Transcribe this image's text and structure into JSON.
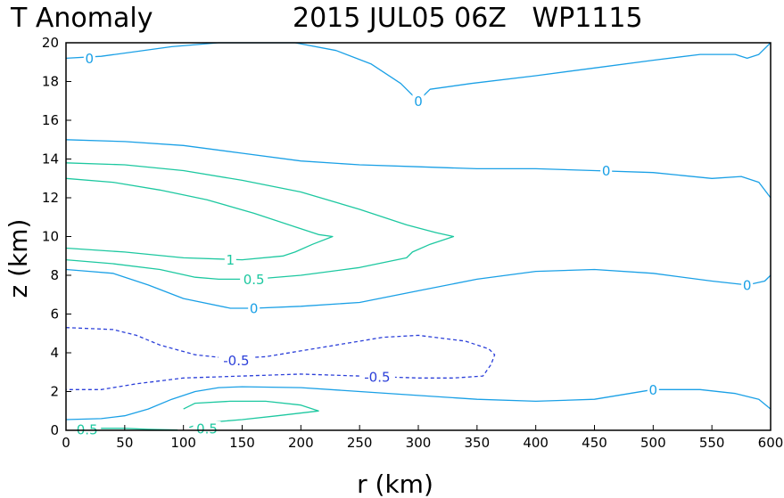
{
  "chart_data": {
    "type": "contour",
    "title_left": "T Anomaly",
    "title_right": "2015 JUL05 06Z   WP1115",
    "xlabel": "r (km)",
    "ylabel": "z (km)",
    "xlim": [
      0,
      600
    ],
    "ylim": [
      0,
      20
    ],
    "x_ticks": [
      0,
      50,
      100,
      150,
      200,
      250,
      300,
      350,
      400,
      450,
      500,
      550,
      600
    ],
    "y_ticks": [
      0,
      2,
      4,
      6,
      8,
      10,
      12,
      14,
      16,
      18,
      20
    ],
    "grid": false,
    "colors": {
      "zero": "#1aa0e6",
      "positive": "#1dc8a0",
      "negative": "#2b3fd9"
    },
    "contours": [
      {
        "level": "0",
        "kind": "zero",
        "dashed": false,
        "points": [
          [
            0,
            19.2
          ],
          [
            30,
            19.3
          ],
          [
            90,
            19.8
          ],
          [
            130,
            20.0
          ],
          [
            195,
            20.0
          ],
          [
            230,
            19.6
          ],
          [
            260,
            18.9
          ],
          [
            285,
            17.9
          ],
          [
            300,
            17.0
          ],
          [
            310,
            17.6
          ],
          [
            345,
            17.9
          ],
          [
            400,
            18.3
          ],
          [
            450,
            18.7
          ],
          [
            500,
            19.1
          ],
          [
            540,
            19.4
          ],
          [
            570,
            19.4
          ],
          [
            580,
            19.2
          ],
          [
            590,
            19.4
          ],
          [
            600,
            20.0
          ]
        ],
        "labels": [
          {
            "text": "0",
            "x": 20,
            "y": 19.2
          },
          {
            "text": "0",
            "x": 300,
            "y": 17.0
          }
        ]
      },
      {
        "level": "0",
        "kind": "zero",
        "dashed": false,
        "points": [
          [
            0,
            15.0
          ],
          [
            50,
            14.9
          ],
          [
            100,
            14.7
          ],
          [
            150,
            14.3
          ],
          [
            200,
            13.9
          ],
          [
            250,
            13.7
          ],
          [
            300,
            13.6
          ],
          [
            350,
            13.5
          ],
          [
            400,
            13.5
          ],
          [
            450,
            13.4
          ],
          [
            500,
            13.3
          ],
          [
            550,
            13.0
          ],
          [
            575,
            13.1
          ],
          [
            590,
            12.8
          ],
          [
            600,
            12.0
          ]
        ],
        "labels": [
          {
            "text": "0",
            "x": 460,
            "y": 13.4
          }
        ]
      },
      {
        "level": "0.5",
        "kind": "positive",
        "dashed": false,
        "points": [
          [
            0,
            13.8
          ],
          [
            50,
            13.7
          ],
          [
            100,
            13.4
          ],
          [
            150,
            12.9
          ],
          [
            200,
            12.3
          ],
          [
            250,
            11.4
          ],
          [
            290,
            10.6
          ],
          [
            315,
            10.2
          ],
          [
            330,
            10.0
          ],
          [
            310,
            9.6
          ],
          [
            295,
            9.2
          ],
          [
            290,
            8.9
          ],
          [
            250,
            8.4
          ],
          [
            200,
            8.0
          ],
          [
            160,
            7.8
          ],
          [
            130,
            7.8
          ],
          [
            110,
            7.9
          ],
          [
            80,
            8.3
          ],
          [
            40,
            8.6
          ],
          [
            0,
            8.8
          ]
        ],
        "labels": [
          {
            "text": "0.5",
            "x": 160,
            "y": 7.8
          }
        ]
      },
      {
        "level": "1",
        "kind": "positive",
        "dashed": false,
        "points": [
          [
            0,
            13.0
          ],
          [
            40,
            12.8
          ],
          [
            80,
            12.4
          ],
          [
            120,
            11.9
          ],
          [
            160,
            11.2
          ],
          [
            195,
            10.5
          ],
          [
            215,
            10.1
          ],
          [
            227,
            10.0
          ],
          [
            210,
            9.6
          ],
          [
            195,
            9.2
          ],
          [
            185,
            9.0
          ],
          [
            150,
            8.8
          ],
          [
            100,
            8.9
          ],
          [
            50,
            9.2
          ],
          [
            0,
            9.4
          ]
        ],
        "labels": [
          {
            "text": "1",
            "x": 140,
            "y": 8.8
          }
        ]
      },
      {
        "level": "0",
        "kind": "zero",
        "dashed": false,
        "points": [
          [
            0,
            8.3
          ],
          [
            20,
            8.2
          ],
          [
            40,
            8.1
          ],
          [
            70,
            7.5
          ],
          [
            100,
            6.8
          ],
          [
            140,
            6.3
          ],
          [
            160,
            6.3
          ],
          [
            200,
            6.4
          ],
          [
            250,
            6.6
          ],
          [
            300,
            7.2
          ],
          [
            350,
            7.8
          ],
          [
            400,
            8.2
          ],
          [
            450,
            8.3
          ],
          [
            500,
            8.1
          ],
          [
            550,
            7.7
          ],
          [
            580,
            7.5
          ],
          [
            595,
            7.7
          ],
          [
            600,
            8.0
          ]
        ],
        "labels": [
          {
            "text": "0",
            "x": 160,
            "y": 6.3
          },
          {
            "text": "0",
            "x": 580,
            "y": 7.5
          }
        ]
      },
      {
        "level": "-0.5",
        "kind": "negative",
        "dashed": true,
        "points": [
          [
            0,
            5.3
          ],
          [
            40,
            5.2
          ],
          [
            60,
            4.9
          ],
          [
            80,
            4.4
          ],
          [
            110,
            3.9
          ],
          [
            140,
            3.7
          ],
          [
            170,
            3.8
          ],
          [
            220,
            4.3
          ],
          [
            270,
            4.8
          ],
          [
            300,
            4.9
          ],
          [
            340,
            4.6
          ],
          [
            360,
            4.2
          ],
          [
            365,
            3.9
          ],
          [
            362,
            3.4
          ],
          [
            355,
            2.8
          ],
          [
            330,
            2.7
          ],
          [
            300,
            2.7
          ],
          [
            250,
            2.8
          ],
          [
            200,
            2.9
          ],
          [
            150,
            2.8
          ],
          [
            100,
            2.7
          ],
          [
            60,
            2.4
          ],
          [
            30,
            2.1
          ],
          [
            0,
            2.1
          ]
        ],
        "labels": [
          {
            "text": "-0.5",
            "x": 145,
            "y": 3.6
          },
          {
            "text": "-0.5",
            "x": 265,
            "y": 2.75
          }
        ]
      },
      {
        "level": "0",
        "kind": "zero",
        "dashed": false,
        "points": [
          [
            0,
            0.55
          ],
          [
            30,
            0.6
          ],
          [
            50,
            0.75
          ],
          [
            70,
            1.1
          ],
          [
            90,
            1.6
          ],
          [
            110,
            2.0
          ],
          [
            130,
            2.2
          ],
          [
            150,
            2.25
          ],
          [
            200,
            2.2
          ],
          [
            250,
            2.0
          ],
          [
            300,
            1.8
          ],
          [
            350,
            1.6
          ],
          [
            400,
            1.5
          ],
          [
            450,
            1.6
          ],
          [
            500,
            2.1
          ],
          [
            540,
            2.1
          ],
          [
            570,
            1.9
          ],
          [
            590,
            1.6
          ],
          [
            600,
            1.1
          ]
        ],
        "labels": [
          {
            "text": "0",
            "x": 500,
            "y": 2.1
          }
        ]
      },
      {
        "level": "0.5",
        "kind": "positive",
        "dashed": false,
        "points": [
          [
            100,
            1.1
          ],
          [
            110,
            1.4
          ],
          [
            140,
            1.5
          ],
          [
            170,
            1.5
          ],
          [
            200,
            1.3
          ],
          [
            215,
            1.0
          ],
          [
            180,
            0.75
          ],
          [
            150,
            0.55
          ],
          [
            130,
            0.45
          ],
          [
            112,
            0.3
          ],
          [
            105,
            0.15
          ]
        ],
        "labels": [
          {
            "text": "0.5",
            "x": 120,
            "y": 0.1
          }
        ]
      },
      {
        "level": "0.5",
        "kind": "positive",
        "dashed": false,
        "points": [
          [
            10,
            0.05
          ],
          [
            20,
            0.1
          ],
          [
            50,
            0.1
          ],
          [
            70,
            0.05
          ],
          [
            95,
            0.02
          ]
        ],
        "labels": [
          {
            "text": "0.5",
            "x": 18,
            "y": 0.05
          }
        ]
      }
    ]
  }
}
